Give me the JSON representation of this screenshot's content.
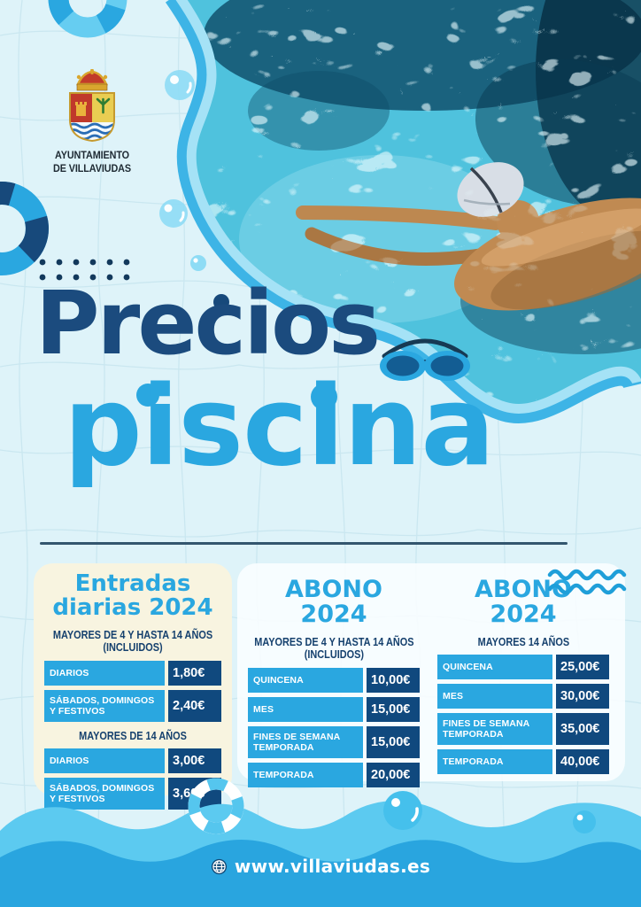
{
  "municipality": {
    "line1": "AYUNTAMIENTO",
    "line2": "DE VILLAVIUDAS"
  },
  "title": {
    "line1": "Precios",
    "line2": "piscina"
  },
  "price_tables": [
    {
      "title": "Entradas diarias 2024",
      "sections": [
        {
          "subtitle": "MAYORES DE 4 Y HASTA 14 AÑOS (INCLUIDOS)",
          "rows": [
            [
              "DIARIOS",
              "1,80€"
            ],
            [
              "SÁBADOS, DOMINGOS Y FESTIVOS",
              "2,40€"
            ]
          ]
        },
        {
          "subtitle": "MAYORES DE 14 AÑOS",
          "rows": [
            [
              "DIARIOS",
              "3,00€"
            ],
            [
              "SÁBADOS, DOMINGOS Y FESTIVOS",
              "3,60€"
            ]
          ]
        }
      ]
    },
    {
      "title": "ABONO 2024",
      "sections": [
        {
          "subtitle": "MAYORES DE 4 Y HASTA 14 AÑOS (INCLUIDOS)",
          "rows": [
            [
              "QUINCENA",
              "10,00€"
            ],
            [
              "MES",
              "15,00€"
            ],
            [
              "FINES DE SEMANA TEMPORADA",
              "15,00€"
            ],
            [
              "TEMPORADA",
              "20,00€"
            ]
          ]
        }
      ]
    },
    {
      "title": "ABONO 2024",
      "sections": [
        {
          "subtitle": "MAYORES 14 AÑOS",
          "rows": [
            [
              "QUINCENA",
              "25,00€"
            ],
            [
              "MES",
              "30,00€"
            ],
            [
              "FINES DE SEMANA TEMPORADA",
              "35,00€"
            ],
            [
              "TEMPORADA",
              "40,00€"
            ]
          ]
        }
      ]
    }
  ],
  "footer": {
    "website": "www.villaviudas.es"
  },
  "icons": {
    "goggles": "swim-goggles-icon",
    "globe": "globe-icon",
    "lifesaver": "lifesaver-ring-icon",
    "waves": "waves-squiggle-icon",
    "coat_of_arms": "villaviudas-coat-of-arms"
  },
  "colors": {
    "accent_blue": "#2aa7e0",
    "navy": "#10497e",
    "title_navy": "#1b4b7e",
    "light_blue_border": "#a5e2f6",
    "cream_card": "#f8f4e0",
    "background": "#def3f9",
    "footer_blue": "#29a5df"
  }
}
